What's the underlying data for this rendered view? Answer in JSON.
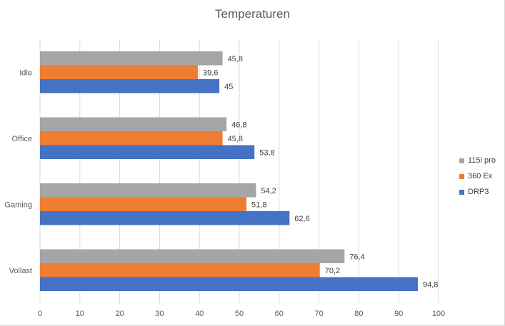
{
  "chart_data": {
    "type": "bar",
    "orientation": "horizontal",
    "title": "Temperaturen",
    "categories": [
      "Idle",
      "Office",
      "Gaming",
      "Vollast"
    ],
    "series": [
      {
        "name": "115i pro",
        "color": "#a5a5a5",
        "values": [
          45.8,
          46.8,
          54.2,
          76.4
        ],
        "labels": [
          "45,8",
          "46,8",
          "54,2",
          "76,4"
        ]
      },
      {
        "name": "360 Ex",
        "color": "#ed7d31",
        "values": [
          39.6,
          45.8,
          51.8,
          70.2
        ],
        "labels": [
          "39,6",
          "45,8",
          "51,8",
          "70,2"
        ]
      },
      {
        "name": "DRP3",
        "color": "#4472c4",
        "values": [
          45,
          53.8,
          62.6,
          94.8
        ],
        "labels": [
          "45",
          "53,8",
          "62,6",
          "94,8"
        ]
      }
    ],
    "xlim": [
      0,
      100
    ],
    "xticks": [
      0,
      10,
      20,
      30,
      40,
      50,
      60,
      70,
      80,
      90,
      100
    ],
    "grid": true,
    "legend": "right"
  }
}
